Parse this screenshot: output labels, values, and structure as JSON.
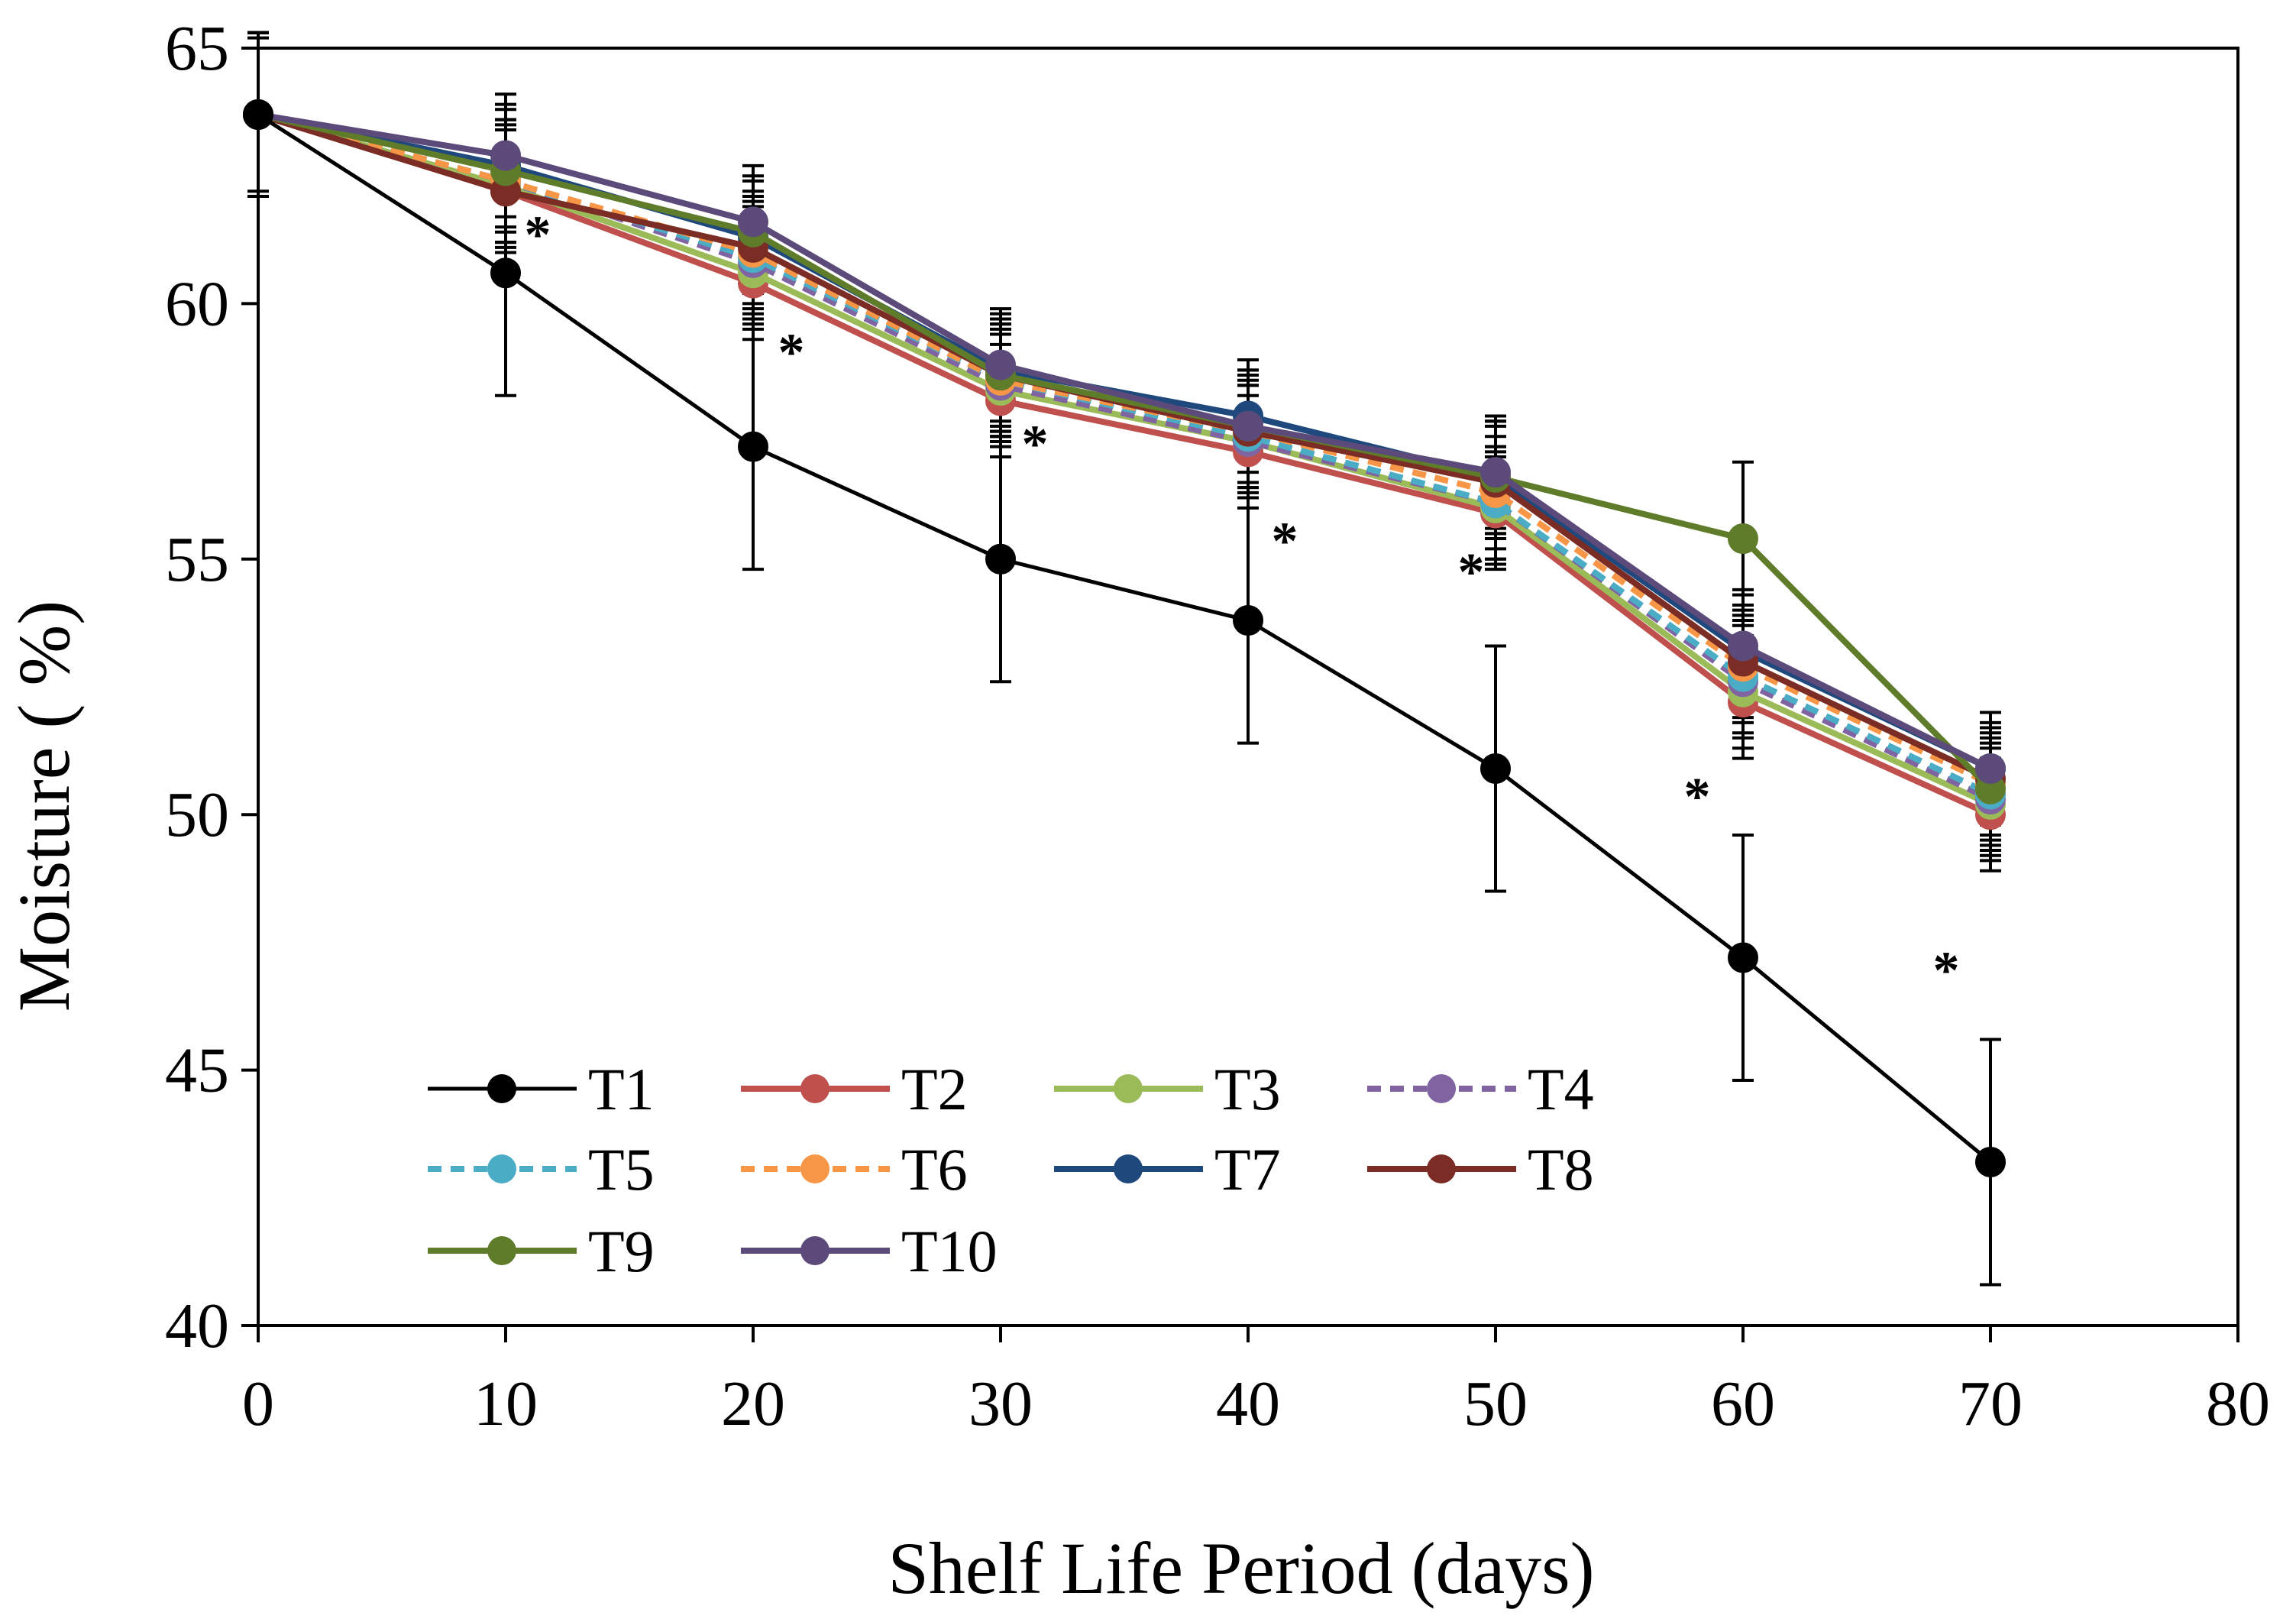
{
  "chart_data": {
    "type": "line",
    "title": "",
    "xlabel": "Shelf Life Period (days)",
    "ylabel": "Moisture ( %)",
    "xlim": [
      0,
      80
    ],
    "ylim": [
      40,
      65
    ],
    "xticks": [
      0,
      10,
      20,
      30,
      40,
      50,
      60,
      70,
      80
    ],
    "yticks": [
      40,
      45,
      50,
      55,
      60,
      65
    ],
    "grid": false,
    "legend_position": "bottom-left, inside plot",
    "x": [
      0,
      10,
      20,
      30,
      40,
      50,
      60,
      70
    ],
    "significance_marker": "*",
    "significance_at_x": [
      10,
      20,
      30,
      40,
      50,
      60,
      70
    ],
    "series": [
      {
        "name": "T1",
        "color": "#000000",
        "dashed": false,
        "values": [
          63.7,
          60.6,
          57.2,
          55.0,
          53.8,
          50.9,
          47.2,
          43.2
        ],
        "errors": [
          1.5,
          2.4,
          2.4,
          2.4,
          2.4,
          2.4,
          2.4,
          2.4
        ]
      },
      {
        "name": "T2",
        "color": "#C0504D",
        "dashed": false,
        "values": [
          63.7,
          62.2,
          60.4,
          58.1,
          57.1,
          55.9,
          52.2,
          50.0
        ],
        "errors": [
          1.6,
          1.2,
          1.1,
          1.1,
          1.1,
          1.1,
          1.1,
          1.1
        ]
      },
      {
        "name": "T3",
        "color": "#9BBB59",
        "dashed": false,
        "values": [
          63.7,
          62.3,
          60.6,
          58.3,
          57.3,
          56.0,
          52.4,
          50.2
        ],
        "errors": [
          1.6,
          1.2,
          1.1,
          1.1,
          1.1,
          1.1,
          1.1,
          1.1
        ]
      },
      {
        "name": "T4",
        "color": "#8064A2",
        "dashed": true,
        "values": [
          63.7,
          62.4,
          60.8,
          58.4,
          57.3,
          56.1,
          52.6,
          50.3
        ],
        "errors": [
          1.6,
          1.2,
          1.1,
          1.1,
          1.1,
          1.1,
          1.1,
          1.1
        ]
      },
      {
        "name": "T5",
        "color": "#4BACC6",
        "dashed": true,
        "values": [
          63.7,
          62.4,
          60.9,
          58.5,
          57.4,
          56.1,
          52.7,
          50.4
        ],
        "errors": [
          1.6,
          1.2,
          1.1,
          1.1,
          1.1,
          1.1,
          1.1,
          1.1
        ]
      },
      {
        "name": "T6",
        "color": "#F79646",
        "dashed": true,
        "values": [
          63.7,
          62.4,
          61.0,
          58.5,
          57.5,
          56.3,
          52.9,
          50.6
        ],
        "errors": [
          1.6,
          1.2,
          1.1,
          1.1,
          1.1,
          1.1,
          1.1,
          1.1
        ]
      },
      {
        "name": "T7",
        "color": "#1F497D",
        "dashed": false,
        "values": [
          63.7,
          62.7,
          61.3,
          58.7,
          57.8,
          56.6,
          53.2,
          50.9
        ],
        "errors": [
          1.6,
          1.2,
          1.1,
          1.1,
          1.1,
          1.1,
          1.1,
          1.1
        ]
      },
      {
        "name": "T8",
        "color": "#7B2C24",
        "dashed": false,
        "values": [
          63.7,
          62.2,
          61.1,
          58.6,
          57.5,
          56.5,
          53.0,
          50.7
        ],
        "errors": [
          1.6,
          1.2,
          1.1,
          1.1,
          1.1,
          1.1,
          1.1,
          1.1
        ]
      },
      {
        "name": "T9",
        "color": "#5F7C2B",
        "dashed": false,
        "values": [
          63.7,
          62.6,
          61.4,
          58.6,
          57.6,
          56.6,
          55.4,
          50.5
        ],
        "errors": [
          1.6,
          1.2,
          1.1,
          1.1,
          1.1,
          1.1,
          1.5,
          1.1
        ]
      },
      {
        "name": "T10",
        "color": "#5C4A7A",
        "dashed": false,
        "values": [
          63.7,
          62.9,
          61.6,
          58.8,
          57.6,
          56.7,
          53.3,
          50.9
        ],
        "errors": [
          1.6,
          1.2,
          1.1,
          1.1,
          1.1,
          1.1,
          1.1,
          1.1
        ]
      }
    ]
  }
}
